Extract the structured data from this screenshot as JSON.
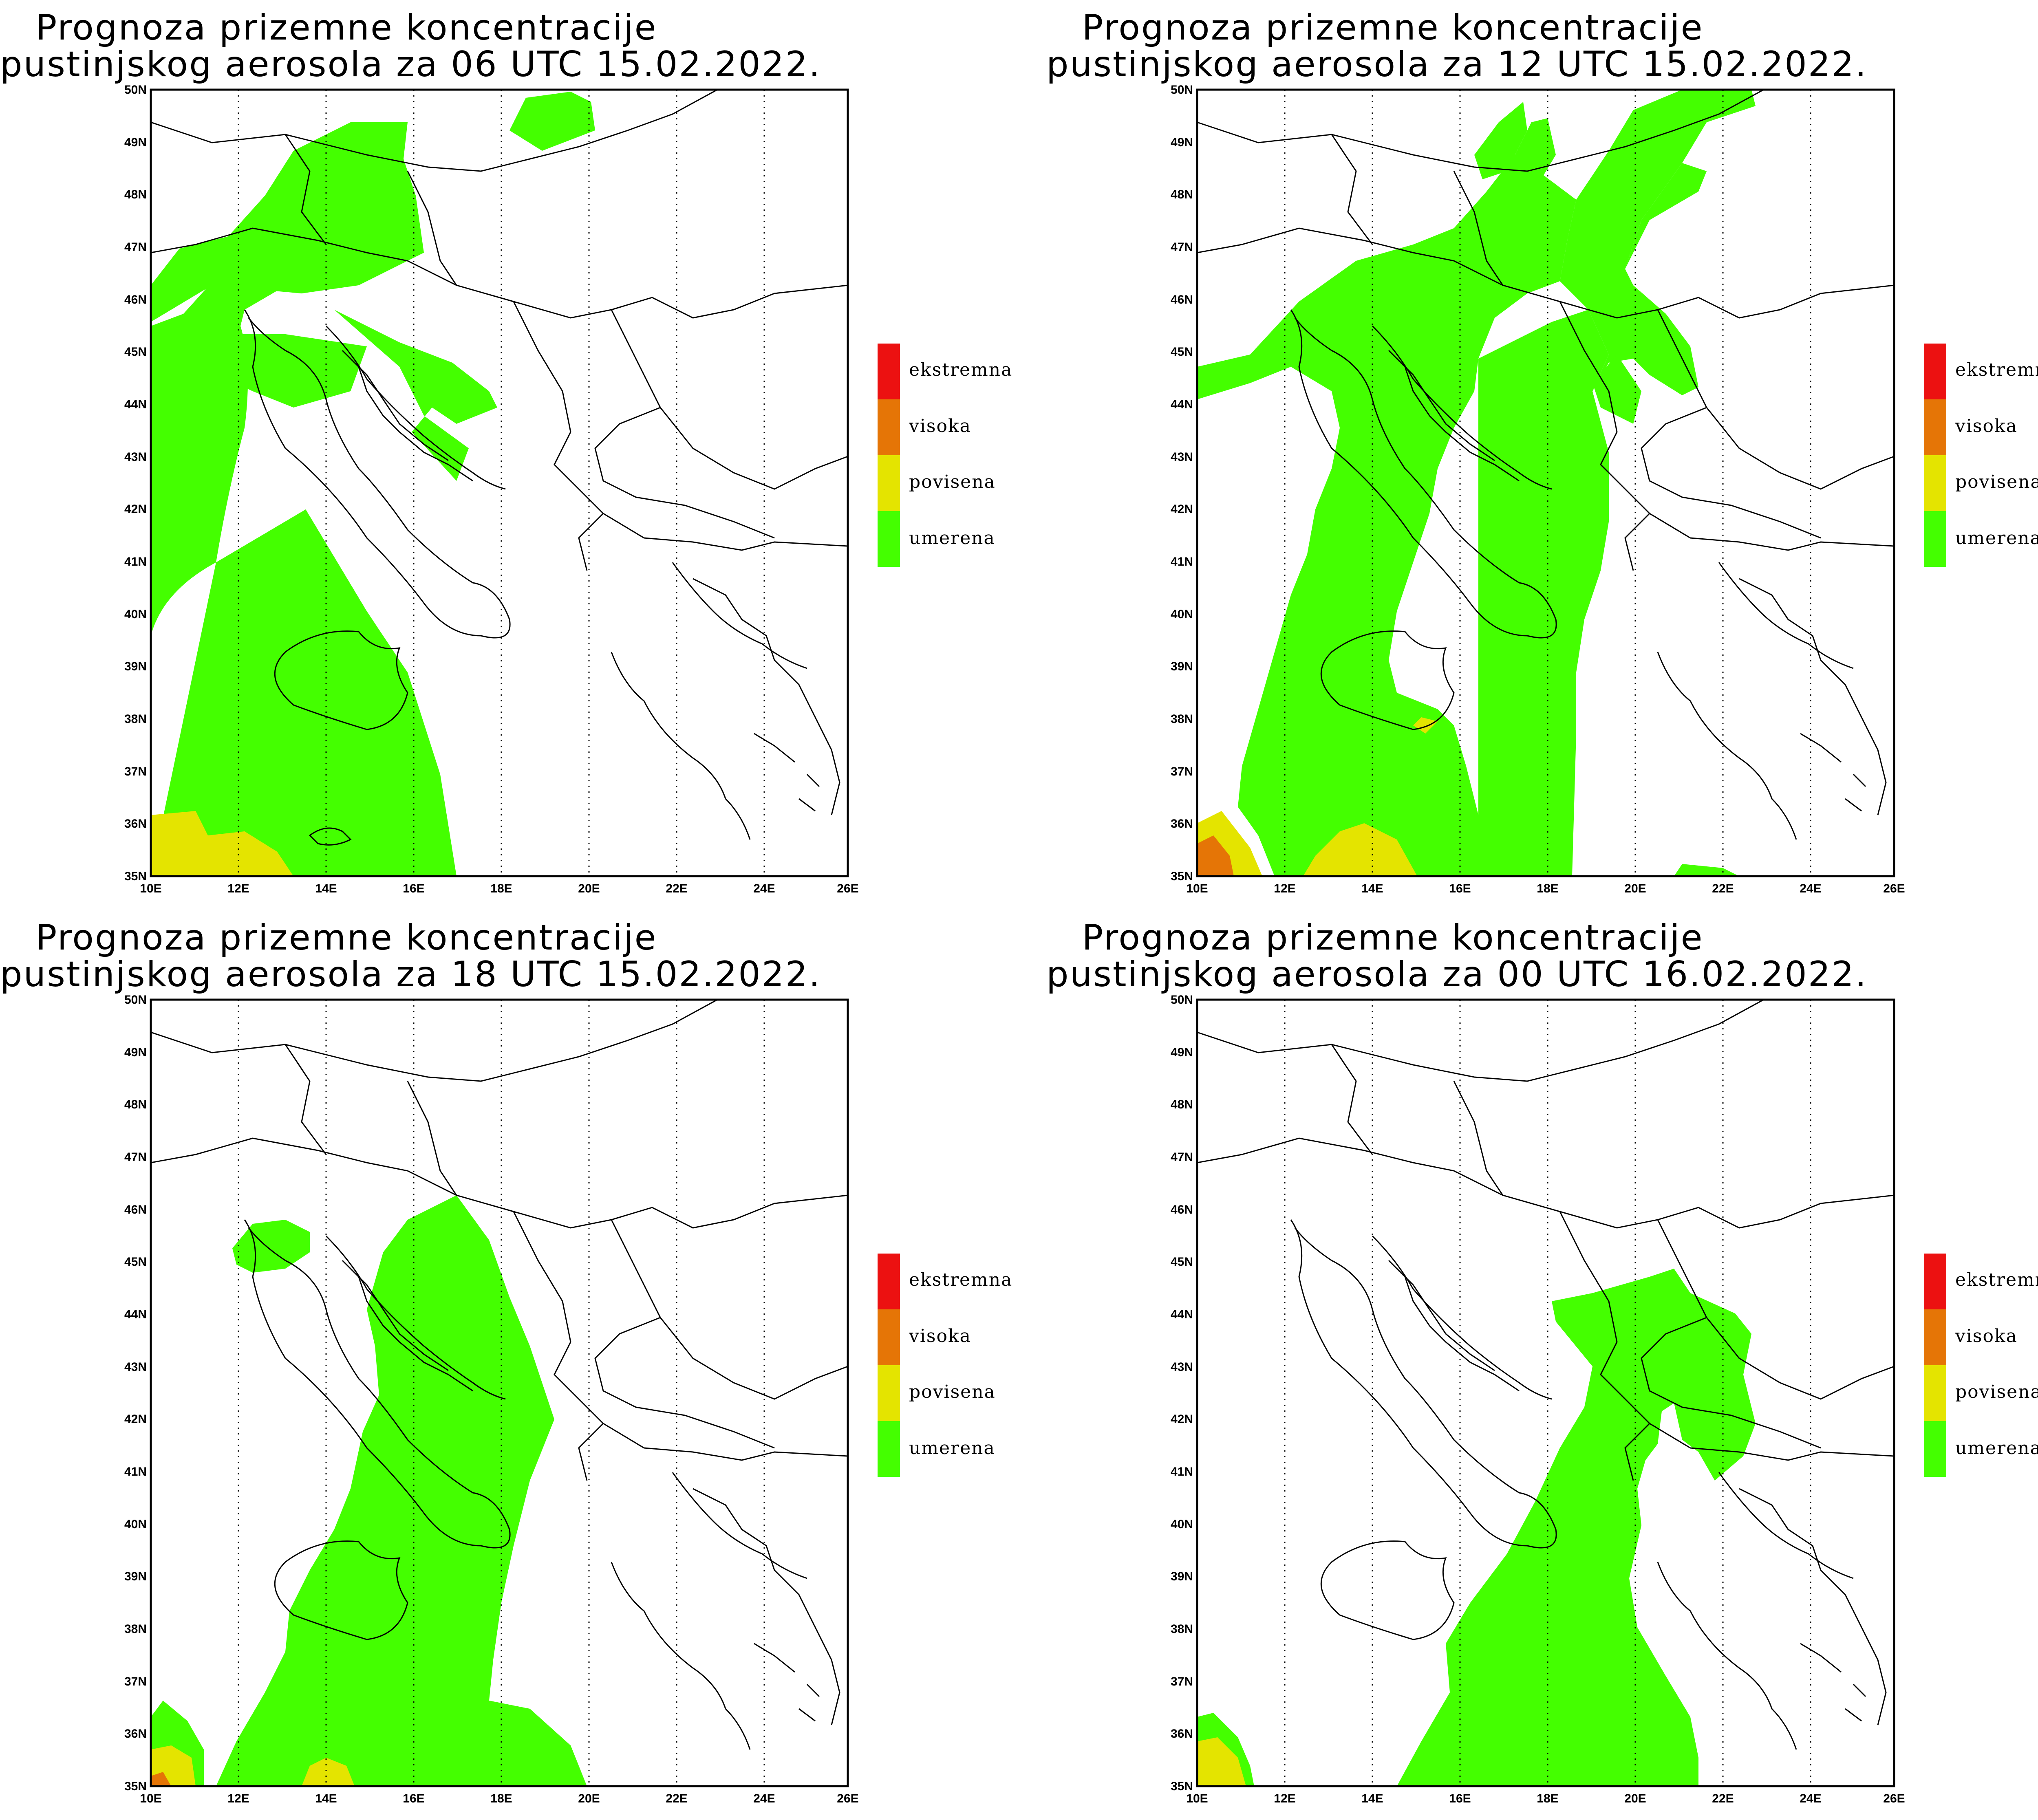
{
  "colors": {
    "umerena": "#44ff00",
    "povisena": "#e4e400",
    "visoka": "#e57506",
    "ekstremna": "#ec1111"
  },
  "legend": [
    {
      "key": "ekstremna",
      "label": "ekstremna",
      "color": "#ec1111"
    },
    {
      "key": "visoka",
      "label": "visoka",
      "color": "#e57506"
    },
    {
      "key": "povisena",
      "label": "povisena",
      "color": "#e4e400"
    },
    {
      "key": "umerena",
      "label": "umerena",
      "color": "#44ff00"
    }
  ],
  "axes": {
    "x_ticks": [
      "10E",
      "12E",
      "14E",
      "16E",
      "18E",
      "20E",
      "22E",
      "24E",
      "26E"
    ],
    "y_ticks": [
      "35N",
      "36N",
      "37N",
      "38N",
      "39N",
      "40N",
      "41N",
      "42N",
      "43N",
      "44N",
      "45N",
      "46N",
      "47N",
      "48N",
      "49N",
      "50N"
    ]
  },
  "panels": [
    {
      "title_line1": "Prognoza prizemne koncentracije",
      "title_line2": "pustinjskog aerosola za 06 UTC 15.02.2022."
    },
    {
      "title_line1": "Prognoza prizemne koncentracije",
      "title_line2": "pustinjskog aerosola za 12 UTC 15.02.2022."
    },
    {
      "title_line1": "Prognoza prizemne koncentracije",
      "title_line2": "pustinjskog aerosola za 18 UTC 15.02.2022."
    },
    {
      "title_line1": "Prognoza prizemne koncentracije",
      "title_line2": "pustinjskog aerosola za 00 UTC 16.02.2022."
    }
  ]
}
